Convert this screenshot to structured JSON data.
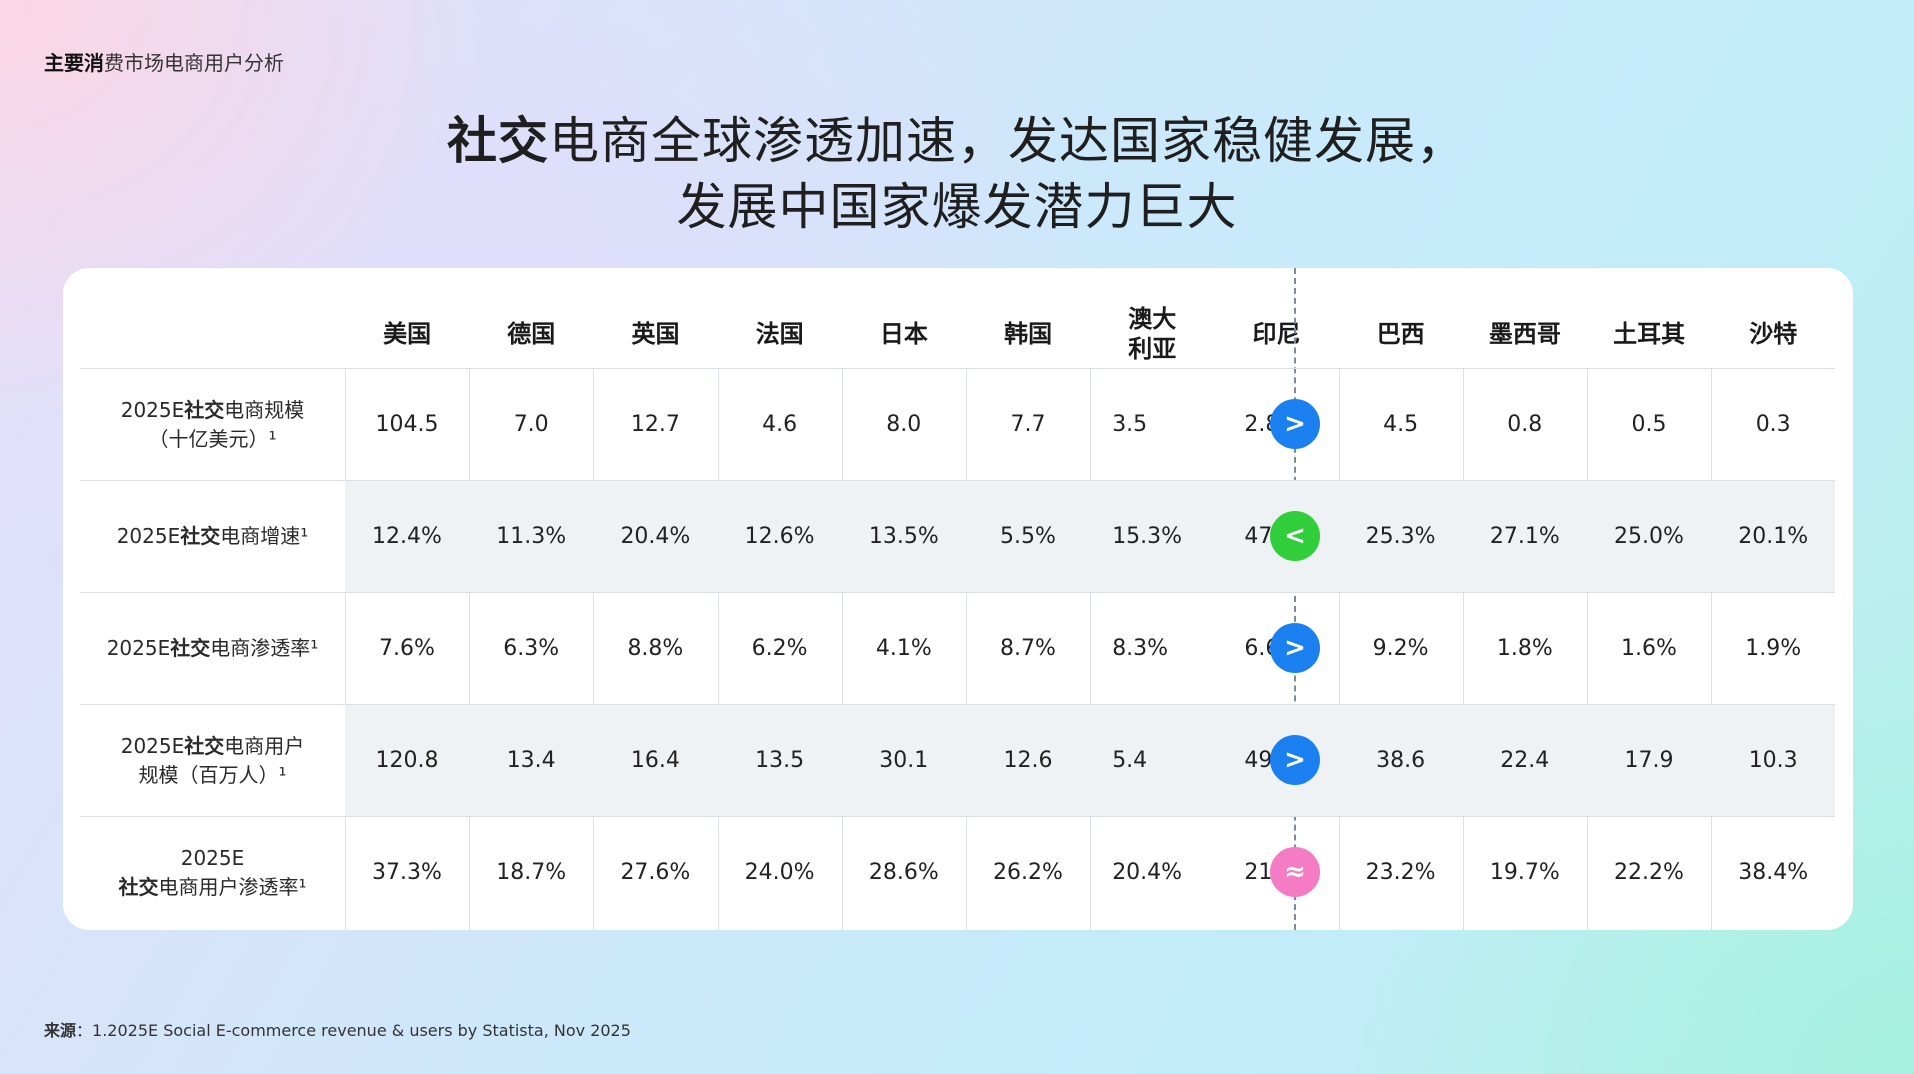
{
  "header": {
    "label_bold": "主要消",
    "label_rest": "费市场电商用户分析"
  },
  "title": {
    "line1_bold": "社交",
    "line1_rest": "电商全球渗透加速，发达国家稳健发展，",
    "line2": "发展中国家爆发潜力巨大"
  },
  "columns": [
    "美国",
    "德国",
    "英国",
    "法国",
    "日本",
    "韩国",
    "澳大利亚",
    "印尼",
    "巴西",
    "墨西哥",
    "土耳其",
    "沙特"
  ],
  "column_8_line1": "澳大",
  "column_8_line2": "利亚",
  "rows": [
    {
      "label_l1_pre": "2025E",
      "label_l1_bold": "社交",
      "label_l1_rest": "电商规模",
      "label_l2": "（十亿美元）¹",
      "values": [
        "104.5",
        "7.0",
        "12.7",
        "4.6",
        "8.0",
        "7.7",
        "3.5",
        "2.8",
        "4.5",
        "0.8",
        "0.5",
        "0.3"
      ],
      "badge": ">",
      "badge_color": "#1a80f0"
    },
    {
      "label_l1_pre": "2025E",
      "label_l1_bold": "社交",
      "label_l1_rest": "电商增速¹",
      "label_l2": "",
      "values": [
        "12.4%",
        "11.3%",
        "20.4%",
        "12.6%",
        "13.5%",
        "5.5%",
        "15.3%",
        "47.1%",
        "25.3%",
        "27.1%",
        "25.0%",
        "20.1%"
      ],
      "badge": "<",
      "badge_color": "#2fce3a"
    },
    {
      "label_l1_pre": "2025E",
      "label_l1_bold": "社交",
      "label_l1_rest": "电商渗透率¹",
      "label_l2": "",
      "values": [
        "7.6%",
        "6.3%",
        "8.8%",
        "6.2%",
        "4.1%",
        "8.7%",
        "8.3%",
        "6.6%",
        "9.2%",
        "1.8%",
        "1.6%",
        "1.9%"
      ],
      "badge": ">",
      "badge_color": "#1a80f0"
    },
    {
      "label_l1_pre": "2025E",
      "label_l1_bold": "社交",
      "label_l1_rest": "电商用户",
      "label_l2": "规模（百万人）¹",
      "values": [
        "120.8",
        "13.4",
        "16.4",
        "13.5",
        "30.1",
        "12.6",
        "5.4",
        "49.5",
        "38.6",
        "22.4",
        "17.9",
        "10.3"
      ],
      "badge": ">",
      "badge_color": "#1a80f0"
    },
    {
      "label_l1_pre": "2025E",
      "label_l1_bold": "",
      "label_l1_rest": "",
      "label_l2_bold": "社交",
      "label_l2": "电商用户渗透率¹",
      "values": [
        "37.3%",
        "18.7%",
        "27.6%",
        "24.0%",
        "28.6%",
        "26.2%",
        "20.4%",
        "21.9%",
        "23.2%",
        "19.7%",
        "22.2%",
        "38.4%"
      ],
      "badge": "≈",
      "badge_color": "#f47cc4"
    }
  ],
  "source": {
    "label_bold": "来源",
    "text": "：1.2025E Social E-commerce revenue & users by Statista,  Nov 2025"
  }
}
